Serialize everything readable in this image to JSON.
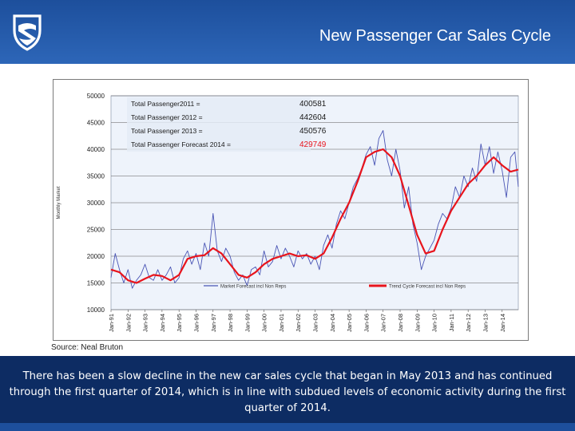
{
  "header": {
    "title": "New Passenger Car Sales Cycle",
    "logo_icon": "shield-logo-icon",
    "bg_color": "#2258a8"
  },
  "source": "Source: Neal Bruton",
  "footer": {
    "text": "There has been a slow decline in the new car sales cycle that began in May 2013 and has continued through the first quarter of 2014, which is in line with subdued levels of economic activity during the first quarter of 2014."
  },
  "chart_data": {
    "type": "line",
    "ylabel": "Monthly Market",
    "ylim": [
      10000,
      50000
    ],
    "y_ticks": [
      "10000",
      "15000",
      "20000",
      "25000",
      "30000",
      "35000",
      "40000",
      "45000",
      "50000"
    ],
    "x_range": [
      1991,
      2014.95
    ],
    "x_ticks": [
      "Jan-91",
      "Jan-92",
      "Jan-93",
      "Jan-94",
      "Jan-95",
      "Jan-96",
      "Jan-97",
      "Jan-98",
      "Jan-99",
      "Jan-00",
      "Jan-01",
      "Jan-02",
      "Jan-03",
      "Jan-04",
      "Jan-05",
      "Jan-06",
      "Jan-07",
      "Jan-08",
      "Jan-09",
      "Jan-10",
      "Jan-11",
      "Jan-12",
      "Jan-13",
      "Jan-14"
    ],
    "annotations": [
      {
        "label": "Total Passenger2011 =",
        "value": "400581",
        "color": "#1a1a1a"
      },
      {
        "label": "Total Passenger 2012 =",
        "value": "442604",
        "color": "#1a1a1a"
      },
      {
        "label": "Total Passenger 2013 =",
        "value": "450576",
        "color": "#1a1a1a"
      },
      {
        "label": "Total Passenger Forecast 2014 =",
        "value": "429749",
        "color": "#e8141c"
      }
    ],
    "legend": [
      {
        "name": "Market Forecast incl Non Reps",
        "color": "#4a55b5"
      },
      {
        "name": "Trend Cycle Forecast incl Non Reps",
        "color": "#e8141c"
      }
    ],
    "series": [
      {
        "name": "Market Forecast incl Non Reps",
        "color": "#4a55b5",
        "points": [
          [
            1991.0,
            16000
          ],
          [
            1991.25,
            20500
          ],
          [
            1991.5,
            17500
          ],
          [
            1991.75,
            15000
          ],
          [
            1992.0,
            17500
          ],
          [
            1992.25,
            14000
          ],
          [
            1992.5,
            15500
          ],
          [
            1992.75,
            16500
          ],
          [
            1993.0,
            18500
          ],
          [
            1993.25,
            16000
          ],
          [
            1993.5,
            15500
          ],
          [
            1993.75,
            17500
          ],
          [
            1994.0,
            15500
          ],
          [
            1994.25,
            16500
          ],
          [
            1994.5,
            18000
          ],
          [
            1994.75,
            15000
          ],
          [
            1995.0,
            16000
          ],
          [
            1995.25,
            19500
          ],
          [
            1995.5,
            21000
          ],
          [
            1995.75,
            18500
          ],
          [
            1996.0,
            20500
          ],
          [
            1996.25,
            17500
          ],
          [
            1996.5,
            22500
          ],
          [
            1996.75,
            20000
          ],
          [
            1997.0,
            28000
          ],
          [
            1997.25,
            21000
          ],
          [
            1997.5,
            19000
          ],
          [
            1997.75,
            21500
          ],
          [
            1998.0,
            20000
          ],
          [
            1998.25,
            17000
          ],
          [
            1998.5,
            15500
          ],
          [
            1998.75,
            16500
          ],
          [
            1999.0,
            14500
          ],
          [
            1999.25,
            17500
          ],
          [
            1999.5,
            18000
          ],
          [
            1999.75,
            16500
          ],
          [
            2000.0,
            21000
          ],
          [
            2000.25,
            18000
          ],
          [
            2000.5,
            19000
          ],
          [
            2000.75,
            22000
          ],
          [
            2001.0,
            19500
          ],
          [
            2001.25,
            21500
          ],
          [
            2001.5,
            20000
          ],
          [
            2001.75,
            18000
          ],
          [
            2002.0,
            21000
          ],
          [
            2002.25,
            19500
          ],
          [
            2002.5,
            20500
          ],
          [
            2002.75,
            18500
          ],
          [
            2003.0,
            20000
          ],
          [
            2003.25,
            17500
          ],
          [
            2003.5,
            22000
          ],
          [
            2003.75,
            24000
          ],
          [
            2004.0,
            21500
          ],
          [
            2004.25,
            26000
          ],
          [
            2004.5,
            28500
          ],
          [
            2004.75,
            27000
          ],
          [
            2005.0,
            30000
          ],
          [
            2005.25,
            33000
          ],
          [
            2005.5,
            34500
          ],
          [
            2005.75,
            36500
          ],
          [
            2006.0,
            39000
          ],
          [
            2006.25,
            40500
          ],
          [
            2006.5,
            37000
          ],
          [
            2006.75,
            42000
          ],
          [
            2007.0,
            43500
          ],
          [
            2007.25,
            38000
          ],
          [
            2007.5,
            35000
          ],
          [
            2007.75,
            40000
          ],
          [
            2008.0,
            36000
          ],
          [
            2008.25,
            29000
          ],
          [
            2008.5,
            33000
          ],
          [
            2008.75,
            26000
          ],
          [
            2009.0,
            22500
          ],
          [
            2009.25,
            17500
          ],
          [
            2009.5,
            20000
          ],
          [
            2009.75,
            21500
          ],
          [
            2010.0,
            23000
          ],
          [
            2010.25,
            26000
          ],
          [
            2010.5,
            28000
          ],
          [
            2010.75,
            27000
          ],
          [
            2011.0,
            29000
          ],
          [
            2011.25,
            33000
          ],
          [
            2011.5,
            31000
          ],
          [
            2011.75,
            35000
          ],
          [
            2012.0,
            33000
          ],
          [
            2012.25,
            36500
          ],
          [
            2012.5,
            34000
          ],
          [
            2012.75,
            41000
          ],
          [
            2013.0,
            37000
          ],
          [
            2013.25,
            40500
          ],
          [
            2013.5,
            35500
          ],
          [
            2013.75,
            39500
          ],
          [
            2014.0,
            36000
          ],
          [
            2014.25,
            31000
          ],
          [
            2014.5,
            38500
          ],
          [
            2014.75,
            39500
          ],
          [
            2014.95,
            33000
          ]
        ]
      },
      {
        "name": "Trend Cycle Forecast incl Non Reps",
        "color": "#e8141c",
        "points": [
          [
            1991.0,
            17500
          ],
          [
            1991.5,
            17000
          ],
          [
            1992.0,
            15500
          ],
          [
            1992.5,
            15000
          ],
          [
            1993.0,
            15800
          ],
          [
            1993.5,
            16500
          ],
          [
            1994.0,
            16300
          ],
          [
            1994.5,
            15500
          ],
          [
            1995.0,
            16500
          ],
          [
            1995.5,
            19500
          ],
          [
            1996.0,
            20000
          ],
          [
            1996.5,
            20200
          ],
          [
            1997.0,
            21500
          ],
          [
            1997.5,
            20500
          ],
          [
            1998.0,
            18500
          ],
          [
            1998.5,
            16500
          ],
          [
            1999.0,
            16000
          ],
          [
            1999.5,
            17000
          ],
          [
            2000.0,
            18500
          ],
          [
            2000.5,
            19500
          ],
          [
            2001.0,
            20000
          ],
          [
            2001.5,
            20500
          ],
          [
            2002.0,
            20000
          ],
          [
            2002.5,
            20200
          ],
          [
            2003.0,
            19500
          ],
          [
            2003.5,
            20500
          ],
          [
            2004.0,
            23500
          ],
          [
            2004.5,
            27000
          ],
          [
            2005.0,
            30000
          ],
          [
            2005.5,
            34000
          ],
          [
            2006.0,
            38500
          ],
          [
            2006.5,
            39500
          ],
          [
            2007.0,
            40000
          ],
          [
            2007.5,
            38500
          ],
          [
            2008.0,
            35000
          ],
          [
            2008.5,
            29500
          ],
          [
            2009.0,
            24000
          ],
          [
            2009.5,
            20500
          ],
          [
            2010.0,
            21000
          ],
          [
            2010.5,
            25000
          ],
          [
            2011.0,
            28500
          ],
          [
            2011.5,
            31000
          ],
          [
            2012.0,
            33500
          ],
          [
            2012.5,
            35000
          ],
          [
            2013.0,
            37000
          ],
          [
            2013.5,
            38500
          ],
          [
            2014.0,
            37000
          ],
          [
            2014.5,
            35800
          ],
          [
            2014.95,
            36200
          ]
        ]
      }
    ]
  }
}
